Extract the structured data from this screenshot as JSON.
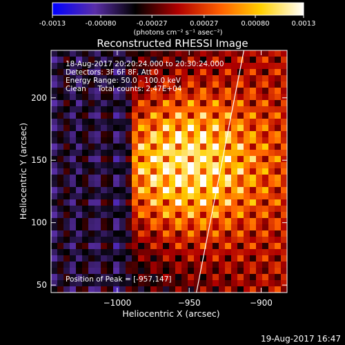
{
  "colorbar": {
    "tick_labels": [
      "-0.0013",
      "-0.00080",
      "-0.00027",
      "0.00027",
      "0.00080",
      "0.0013"
    ],
    "tick_values": [
      -0.0013,
      -0.0008,
      -0.00027,
      0.00027,
      0.0008,
      0.0013
    ],
    "range": [
      -0.0013,
      0.0013
    ],
    "unit_label": "(photons cm⁻² s⁻¹ asec⁻²)",
    "colormap": [
      "#0000ff",
      "#5a2ea8",
      "#000000",
      "#b00000",
      "#ff6000",
      "#ffd000",
      "#ffffff"
    ]
  },
  "footer": {
    "timestamp": "19-Aug-2017 16:47"
  },
  "chart_data": {
    "type": "heatmap",
    "title": "Reconstructed RHESSI Image",
    "xlabel": "Heliocentric X (arcsec)",
    "ylabel": "Heliocentric Y (arcsec)",
    "xlim": [
      -1046,
      -882
    ],
    "ylim": [
      44,
      238
    ],
    "x_ticks": [
      {
        "value": -1000,
        "label": "−1000"
      },
      {
        "value": -950,
        "label": "−950"
      },
      {
        "value": -900,
        "label": "−900"
      }
    ],
    "y_ticks": [
      {
        "value": 50,
        "label": "50"
      },
      {
        "value": 100,
        "label": "100"
      },
      {
        "value": 150,
        "label": "150"
      },
      {
        "value": 200,
        "label": "200"
      }
    ],
    "annotations": [
      "18-Aug-2017 20:20:24.000 to 20:30:24.000",
      "Detectors: 3F 6F 8F, Att 0",
      "Energy Range: 50.0 - 100.0 keV",
      "Clean     Total counts: 2.47E+04"
    ],
    "peak_label": "Position of Peak = [-957,147]",
    "peak": {
      "x": -957,
      "y": 147
    },
    "limb_line": {
      "x1": -945,
      "y1": 44,
      "x2": -912,
      "y2": 238
    }
  }
}
